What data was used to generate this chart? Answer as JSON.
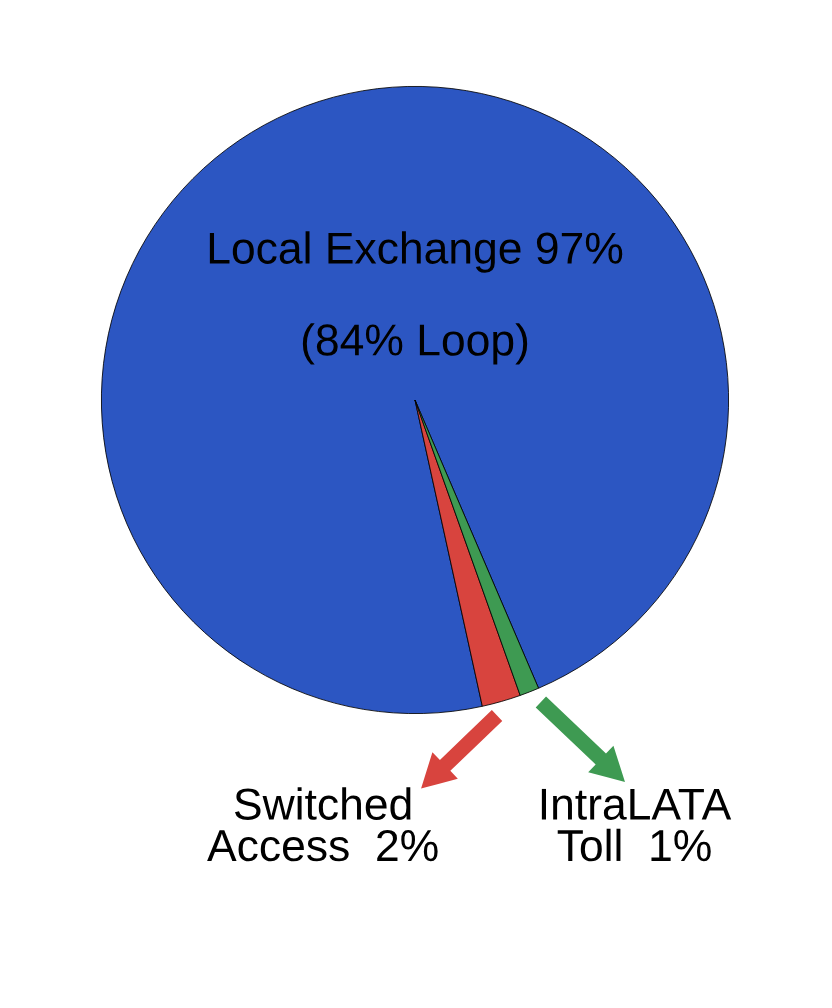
{
  "chart_data": {
    "type": "pie",
    "categories": [
      "Local Exchange",
      "Switched Access",
      "IntraLATA Toll"
    ],
    "values": [
      97,
      2,
      1
    ],
    "value_labels": [
      "97%",
      "2%",
      "1%"
    ],
    "colors": [
      "#2c56c2",
      "#d8443e",
      "#3e9a52"
    ],
    "annotations": [
      "(84% Loop)"
    ],
    "legend": "bottom"
  }
}
